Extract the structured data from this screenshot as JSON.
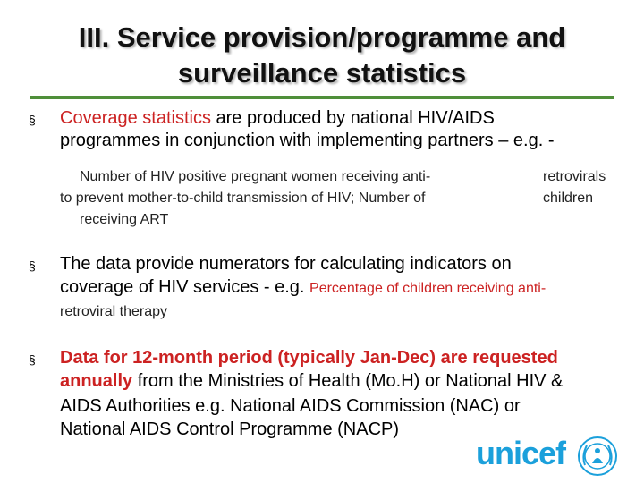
{
  "title": {
    "line1": "III. Service provision/programme and",
    "line2": "surveillance statistics"
  },
  "bullet_glyph": "§",
  "b1": {
    "highlight": "Coverage statistics",
    "rest1": " are produced by national HIV/AIDS",
    "line2": "programmes in conjunction with implementing partners – e.g. -",
    "sub_line1": "Number of HIV positive pregnant women receiving anti-",
    "sub_line2": "to prevent mother-to-child transmission of HIV;  Number of",
    "sub_line3": "receiving ART",
    "sub_right1": "retrovirals",
    "sub_right2": "children"
  },
  "b2": {
    "line1": "The data provide numerators for calculating indicators on",
    "line2_main": "coverage of HIV services - e.g. ",
    "line2_small": "Percentage of children receiving anti-",
    "line3": "retroviral therapy"
  },
  "b3": {
    "highlight1": "Data for 12-month period (typically Jan-Dec) are requested",
    "highlight2": "annually",
    "rest2": " from the Ministries of Health (Mo.H) or National HIV &",
    "line3": "AIDS Authorities e.g. National AIDS Commission (NAC) or",
    "line4": "National AIDS Control Programme (NACP)"
  },
  "logo": {
    "text": "unicef",
    "icon": "unicef-emblem-icon",
    "color": "#1ba0db"
  }
}
